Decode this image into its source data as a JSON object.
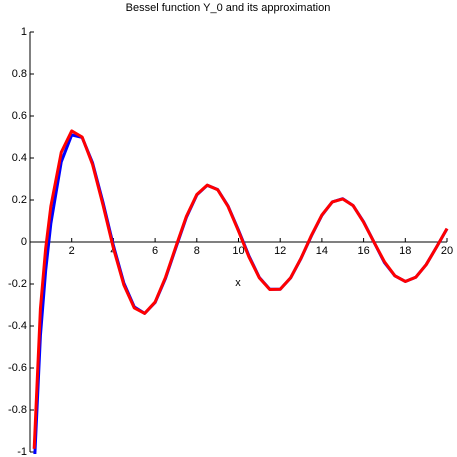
{
  "chart_data": {
    "type": "line",
    "title": "Bessel function Y_0 and its approximation",
    "x_label": "x",
    "x": [
      0.2,
      0.5,
      0.75,
      1,
      1.5,
      2,
      2.5,
      3,
      3.5,
      4,
      4.5,
      5,
      5.5,
      6,
      6.5,
      7,
      7.5,
      8,
      8.5,
      9,
      9.5,
      10,
      10.5,
      11,
      11.5,
      12,
      12.5,
      13,
      13.5,
      14,
      14.5,
      15,
      15.5,
      16,
      16.5,
      17,
      17.5,
      18,
      18.5,
      19,
      19.5,
      20
    ],
    "series": [
      {
        "color": "#0000ff",
        "values": [
          -1.081,
          -0.445,
          -0.137,
          0.088,
          0.382,
          0.51,
          0.498,
          0.377,
          0.189,
          -0.017,
          -0.195,
          -0.309,
          -0.34,
          -0.288,
          -0.173,
          -0.026,
          0.117,
          0.224,
          0.27,
          0.25,
          0.171,
          0.056,
          -0.066,
          -0.169,
          -0.225,
          -0.225,
          -0.171,
          -0.078,
          0.03,
          0.127,
          0.191,
          0.206,
          0.173,
          0.096,
          -0.001,
          -0.098,
          -0.161,
          -0.188,
          -0.168,
          -0.108,
          -0.024,
          0.063
        ]
      },
      {
        "color": "#ff0000",
        "values": [
          -0.985,
          -0.317,
          -0.032,
          0.17,
          0.427,
          0.529,
          0.5,
          0.369,
          0.177,
          -0.029,
          -0.204,
          -0.314,
          -0.34,
          -0.286,
          -0.168,
          -0.021,
          0.122,
          0.226,
          0.271,
          0.249,
          0.169,
          0.052,
          -0.071,
          -0.171,
          -0.226,
          -0.225,
          -0.17,
          -0.077,
          0.032,
          0.129,
          0.191,
          0.205,
          0.173,
          0.094,
          -0.001,
          -0.094,
          -0.161,
          -0.188,
          -0.168,
          -0.108,
          -0.024,
          0.064
        ]
      }
    ],
    "xlim": [
      0,
      20
    ],
    "ylim": [
      -1,
      1
    ],
    "xticks": [
      2,
      4,
      6,
      8,
      10,
      12,
      14,
      16,
      18,
      20
    ],
    "yticks": [
      -1,
      -0.8,
      -0.6,
      -0.4,
      -0.2,
      0,
      0.2,
      0.4,
      0.6,
      0.8,
      1
    ]
  }
}
